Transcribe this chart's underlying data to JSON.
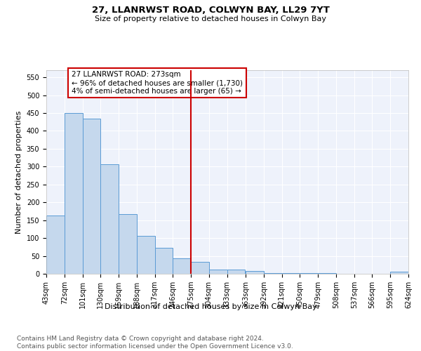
{
  "title1": "27, LLANRWST ROAD, COLWYN BAY, LL29 7YT",
  "title2": "Size of property relative to detached houses in Colwyn Bay",
  "xlabel": "Distribution of detached houses by size in Colwyn Bay",
  "ylabel": "Number of detached properties",
  "bins": [
    43,
    72,
    101,
    130,
    159,
    188,
    217,
    246,
    275,
    304,
    333,
    363,
    392,
    421,
    450,
    479,
    508,
    537,
    566,
    595,
    624
  ],
  "counts": [
    163,
    450,
    435,
    307,
    167,
    107,
    73,
    44,
    33,
    12,
    11,
    8,
    1,
    2,
    1,
    1,
    0,
    0,
    0,
    5
  ],
  "bar_color": "#c5d8ed",
  "bar_edge_color": "#5b9bd5",
  "vline_x": 275,
  "vline_color": "#cc0000",
  "annotation_text": "27 LLANRWST ROAD: 273sqm\n← 96% of detached houses are smaller (1,730)\n4% of semi-detached houses are larger (65) →",
  "annotation_box_color": "#cc0000",
  "background_color": "#eef2fb",
  "grid_color": "#ffffff",
  "ylim": [
    0,
    570
  ],
  "yticks": [
    0,
    50,
    100,
    150,
    200,
    250,
    300,
    350,
    400,
    450,
    500,
    550
  ],
  "footer": "Contains HM Land Registry data © Crown copyright and database right 2024.\nContains public sector information licensed under the Open Government Licence v3.0.",
  "tick_labels": [
    "43sqm",
    "72sqm",
    "101sqm",
    "130sqm",
    "159sqm",
    "188sqm",
    "217sqm",
    "246sqm",
    "275sqm",
    "304sqm",
    "333sqm",
    "363sqm",
    "392sqm",
    "421sqm",
    "450sqm",
    "479sqm",
    "508sqm",
    "537sqm",
    "566sqm",
    "595sqm",
    "624sqm"
  ],
  "title1_fontsize": 9.5,
  "title2_fontsize": 8,
  "ylabel_fontsize": 8,
  "xlabel_fontsize": 8,
  "tick_fontsize": 7,
  "footer_fontsize": 6.5,
  "annot_fontsize": 7.5
}
